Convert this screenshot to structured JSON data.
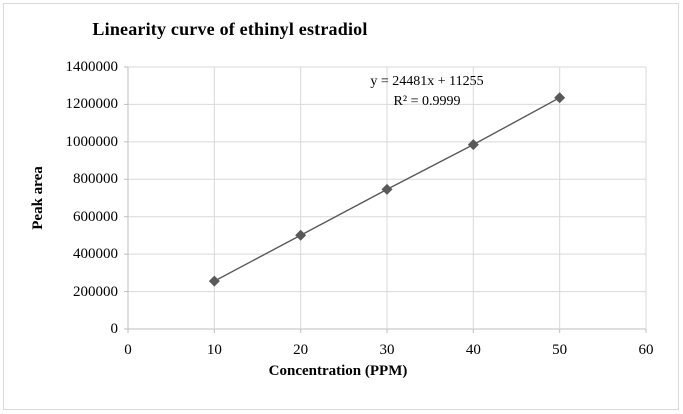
{
  "chart_data": {
    "type": "scatter",
    "title": "Linearity curve of ethinyl estradiol",
    "xlabel": "Concentration (PPM)",
    "ylabel": "Peak area",
    "x": [
      10,
      20,
      30,
      40,
      50
    ],
    "y": [
      256000,
      501000,
      746000,
      985000,
      1236000
    ],
    "trendline": {
      "slope": 24481,
      "intercept": 11255,
      "r_squared": 0.9999,
      "equation_label": "y = 24481x + 11255",
      "r_squared_label": "R² = 0.9999"
    },
    "xlim": [
      0,
      60
    ],
    "ylim": [
      0,
      1400000
    ],
    "x_ticks": [
      0,
      10,
      20,
      30,
      40,
      50,
      60
    ],
    "y_ticks": [
      0,
      200000,
      400000,
      600000,
      800000,
      1000000,
      1200000,
      1400000
    ],
    "grid": true,
    "legend": "none",
    "marker": "diamond",
    "colors": {
      "series": "#595959",
      "gridline": "#d9d9d9",
      "axis": "#bfbfbf",
      "text": "#000000",
      "border": "#d9d9d9"
    }
  }
}
